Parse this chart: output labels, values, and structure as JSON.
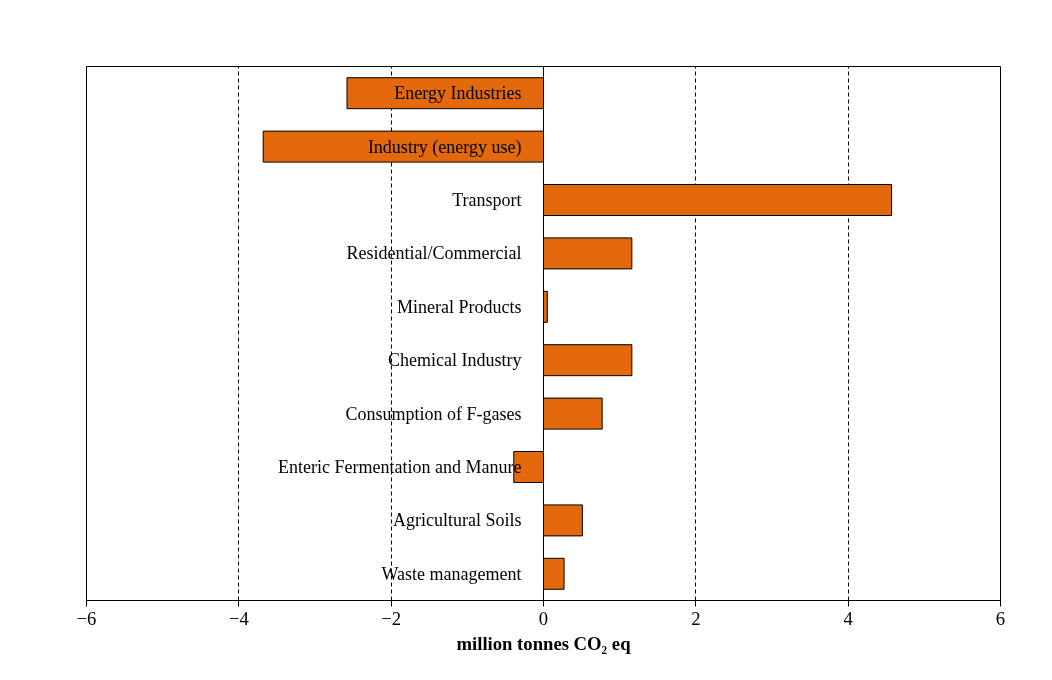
{
  "chart_data": {
    "type": "bar",
    "orientation": "horizontal",
    "xlabel": "million tonnes CO₂ eq",
    "categories": [
      "Energy Industries",
      "Industry (energy use)",
      "Transport",
      "Residential/Commercial",
      "Mineral Products",
      "Chemical Industry",
      "Consumption of F-gases",
      "Enteric Fermentation and Manure",
      "Agricultural Soils",
      "Waste management"
    ],
    "values": [
      -2.58,
      -3.68,
      4.57,
      1.16,
      0.05,
      1.16,
      0.77,
      -0.39,
      0.51,
      0.27
    ],
    "color": "#e4690c",
    "xlim": [
      -6,
      6
    ],
    "xticks": [
      -6,
      -4,
      -2,
      0,
      2,
      4,
      6
    ],
    "grid": "x"
  }
}
